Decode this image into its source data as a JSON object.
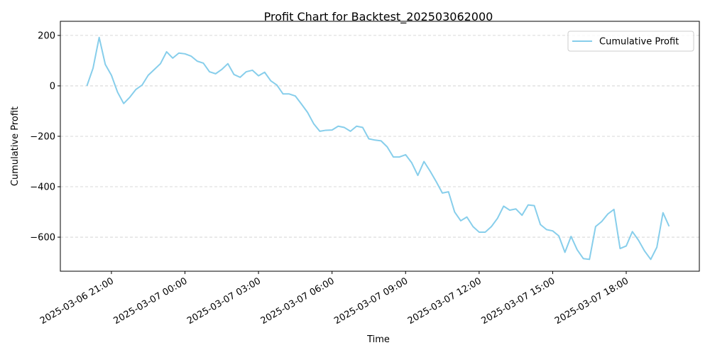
{
  "chart_data": {
    "type": "line",
    "title": "Profit Chart for Backtest_202503062000",
    "xlabel": "Time",
    "ylabel": "Cumulative Profit",
    "x": [
      "2025-03-06 20:00",
      "2025-03-06 20:15",
      "2025-03-06 20:30",
      "2025-03-06 20:45",
      "2025-03-06 21:00",
      "2025-03-06 21:15",
      "2025-03-06 21:30",
      "2025-03-06 21:45",
      "2025-03-06 22:00",
      "2025-03-06 22:15",
      "2025-03-06 22:30",
      "2025-03-06 22:45",
      "2025-03-06 23:00",
      "2025-03-06 23:15",
      "2025-03-06 23:30",
      "2025-03-06 23:45",
      "2025-03-07 00:00",
      "2025-03-07 00:15",
      "2025-03-07 00:30",
      "2025-03-07 00:45",
      "2025-03-07 01:00",
      "2025-03-07 01:15",
      "2025-03-07 01:30",
      "2025-03-07 01:45",
      "2025-03-07 02:00",
      "2025-03-07 02:15",
      "2025-03-07 02:30",
      "2025-03-07 02:45",
      "2025-03-07 03:00",
      "2025-03-07 03:15",
      "2025-03-07 03:30",
      "2025-03-07 03:45",
      "2025-03-07 04:00",
      "2025-03-07 04:15",
      "2025-03-07 04:30",
      "2025-03-07 04:45",
      "2025-03-07 05:00",
      "2025-03-07 05:15",
      "2025-03-07 05:30",
      "2025-03-07 05:45",
      "2025-03-07 06:00",
      "2025-03-07 06:15",
      "2025-03-07 06:30",
      "2025-03-07 06:45",
      "2025-03-07 07:00",
      "2025-03-07 07:15",
      "2025-03-07 07:30",
      "2025-03-07 07:45",
      "2025-03-07 08:00",
      "2025-03-07 08:15",
      "2025-03-07 08:30",
      "2025-03-07 08:45",
      "2025-03-07 09:00",
      "2025-03-07 09:15",
      "2025-03-07 09:30",
      "2025-03-07 09:45",
      "2025-03-07 10:00",
      "2025-03-07 10:15",
      "2025-03-07 10:30",
      "2025-03-07 10:45",
      "2025-03-07 11:00",
      "2025-03-07 11:15",
      "2025-03-07 11:30",
      "2025-03-07 11:45",
      "2025-03-07 12:00",
      "2025-03-07 12:15",
      "2025-03-07 12:30",
      "2025-03-07 12:45",
      "2025-03-07 13:00",
      "2025-03-07 13:15",
      "2025-03-07 13:30",
      "2025-03-07 13:45",
      "2025-03-07 14:00",
      "2025-03-07 14:15",
      "2025-03-07 14:30",
      "2025-03-07 14:45",
      "2025-03-07 15:00",
      "2025-03-07 15:15",
      "2025-03-07 15:30",
      "2025-03-07 15:45",
      "2025-03-07 16:00",
      "2025-03-07 16:15",
      "2025-03-07 16:30",
      "2025-03-07 16:45",
      "2025-03-07 17:00",
      "2025-03-07 17:15",
      "2025-03-07 17:30",
      "2025-03-07 17:45",
      "2025-03-07 18:00",
      "2025-03-07 18:15",
      "2025-03-07 18:30",
      "2025-03-07 18:45",
      "2025-03-07 19:00",
      "2025-03-07 19:15",
      "2025-03-07 19:30",
      "2025-03-07 19:45"
    ],
    "series": [
      {
        "name": "Cumulative Profit",
        "color": "#87ceeb",
        "values": [
          0,
          70,
          192,
          85,
          42,
          -25,
          -70,
          -45,
          -14,
          3,
          42,
          65,
          88,
          135,
          110,
          130,
          127,
          118,
          98,
          90,
          56,
          48,
          65,
          88,
          45,
          34,
          56,
          62,
          40,
          54,
          20,
          3,
          -32,
          -32,
          -40,
          -72,
          -105,
          -150,
          -180,
          -176,
          -175,
          -160,
          -165,
          -180,
          -160,
          -165,
          -210,
          -215,
          -218,
          -242,
          -282,
          -282,
          -273,
          -305,
          -355,
          -300,
          -338,
          -380,
          -425,
          -420,
          -500,
          -535,
          -520,
          -558,
          -580,
          -580,
          -558,
          -525,
          -477,
          -493,
          -488,
          -513,
          -472,
          -475,
          -550,
          -570,
          -575,
          -595,
          -660,
          -597,
          -650,
          -685,
          -688,
          -558,
          -538,
          -508,
          -490,
          -645,
          -635,
          -578,
          -612,
          -655,
          -688,
          -640,
          -503,
          -557
        ]
      }
    ],
    "xlim": [
      "2025-03-06 18:55",
      "2025-03-07 20:59"
    ],
    "xticks": [
      "2025-03-06 21:00",
      "2025-03-07 00:00",
      "2025-03-07 03:00",
      "2025-03-07 06:00",
      "2025-03-07 09:00",
      "2025-03-07 12:00",
      "2025-03-07 15:00",
      "2025-03-07 18:00"
    ],
    "ylim": [
      -735,
      256
    ],
    "yticks": [
      {
        "value": -600,
        "label": "−600"
      },
      {
        "value": -400,
        "label": "−400"
      },
      {
        "value": -200,
        "label": "−200"
      },
      0,
      200
    ],
    "grid": "y",
    "legend": "upper right"
  }
}
